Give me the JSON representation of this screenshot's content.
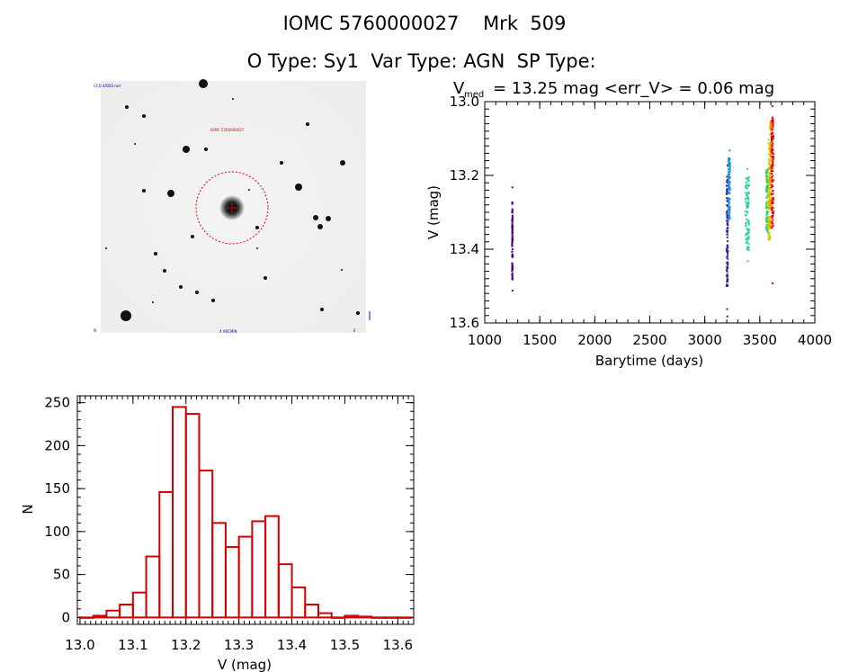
{
  "header": {
    "id_label": "IOMC 5760000027",
    "name": "Mrk  509",
    "o_type_label": "O Type:",
    "o_type": "Sy1",
    "var_type_label": "Var Type:",
    "var_type": "AGN",
    "sp_type_label": "SP Type:",
    "sp_type": ""
  },
  "image_panel": {
    "corner_tl": "CCD 4/DSS red",
    "target_label": "IOMC 5760000027",
    "corner_bl": "N",
    "bottom_label": "4 ARCMIN",
    "corner_br": "E"
  },
  "lightcurve_stats": {
    "v_symbol": "V",
    "v_subscript": "med",
    "median_text": "= 13.25 mag <err_V> = 0.06 mag"
  },
  "chart_data": [
    {
      "type": "scatter",
      "xlabel": "Barytime (days)",
      "ylabel": "V (mag)",
      "xlim": [
        1000,
        4000
      ],
      "ylim": [
        13.6,
        13.0
      ],
      "y_inverted": true,
      "x_ticks": [
        1000,
        1500,
        2000,
        2500,
        3000,
        3500,
        4000
      ],
      "y_ticks": [
        13.0,
        13.2,
        13.4,
        13.6
      ],
      "y_tick_labels": [
        "13.0",
        "13.2",
        "13.4",
        "13.6"
      ],
      "series": [
        {
          "color": "#4b0082",
          "x_range": [
            1240,
            1245
          ],
          "y_range": [
            13.27,
            13.48
          ],
          "outliers": [
            [
              1243,
              13.23
            ],
            [
              1244,
              13.51
            ]
          ]
        },
        {
          "color": "#2a1fa8",
          "x_range": [
            3190,
            3202
          ],
          "y_range": [
            13.2,
            13.5
          ],
          "outliers": [
            [
              3195,
              13.56
            ],
            [
              3197,
              13.58
            ],
            [
              3199,
              13.17
            ]
          ]
        },
        {
          "color": "#1e8fe0",
          "x_range": [
            3205,
            3222
          ],
          "y_range": [
            13.15,
            13.32
          ],
          "outliers": [
            [
              3218,
              13.13
            ]
          ]
        },
        {
          "color": "#2ecfa0",
          "x_range": [
            3360,
            3395
          ],
          "y_range": [
            13.2,
            13.4
          ],
          "outliers": [
            [
              3380,
              13.18
            ],
            [
              3383,
              13.43
            ]
          ]
        },
        {
          "color": "#3bd45a",
          "x_range": [
            3550,
            3570
          ],
          "y_range": [
            13.18,
            13.36
          ],
          "outliers": []
        },
        {
          "color": "#c8d000",
          "x_range": [
            3570,
            3585
          ],
          "y_range": [
            13.1,
            13.38
          ],
          "outliers": []
        },
        {
          "color": "#ff8c00",
          "x_range": [
            3585,
            3600
          ],
          "y_range": [
            13.05,
            13.35
          ],
          "outliers": []
        },
        {
          "color": "#e00000",
          "x_range": [
            3598,
            3615
          ],
          "y_range": [
            13.04,
            13.34
          ],
          "outliers": [
            [
              3606,
              13.01
            ],
            [
              3608,
              13.49
            ]
          ]
        }
      ]
    },
    {
      "type": "bar",
      "subtype": "histogram",
      "xlabel": "V (mag)",
      "ylabel": "N",
      "xlim": [
        12.995,
        13.63
      ],
      "ylim": [
        -8,
        258
      ],
      "x_ticks": [
        13.0,
        13.1,
        13.2,
        13.3,
        13.4,
        13.5,
        13.6
      ],
      "x_tick_labels": [
        "13.0",
        "13.1",
        "13.2",
        "13.3",
        "13.4",
        "13.5",
        "13.6"
      ],
      "y_ticks": [
        0,
        50,
        100,
        150,
        200,
        250
      ],
      "bin_width": 0.025,
      "bin_starts": [
        13.0,
        13.025,
        13.05,
        13.075,
        13.1,
        13.125,
        13.15,
        13.175,
        13.2,
        13.225,
        13.25,
        13.275,
        13.3,
        13.325,
        13.35,
        13.375,
        13.4,
        13.425,
        13.45,
        13.475,
        13.5,
        13.525,
        13.55,
        13.575,
        13.6
      ],
      "values": [
        0,
        2,
        8,
        15,
        29,
        71,
        146,
        245,
        237,
        171,
        110,
        82,
        94,
        112,
        118,
        62,
        35,
        15,
        5,
        0,
        2,
        1,
        0,
        0,
        0
      ],
      "bar_color": "#d40000"
    }
  ]
}
